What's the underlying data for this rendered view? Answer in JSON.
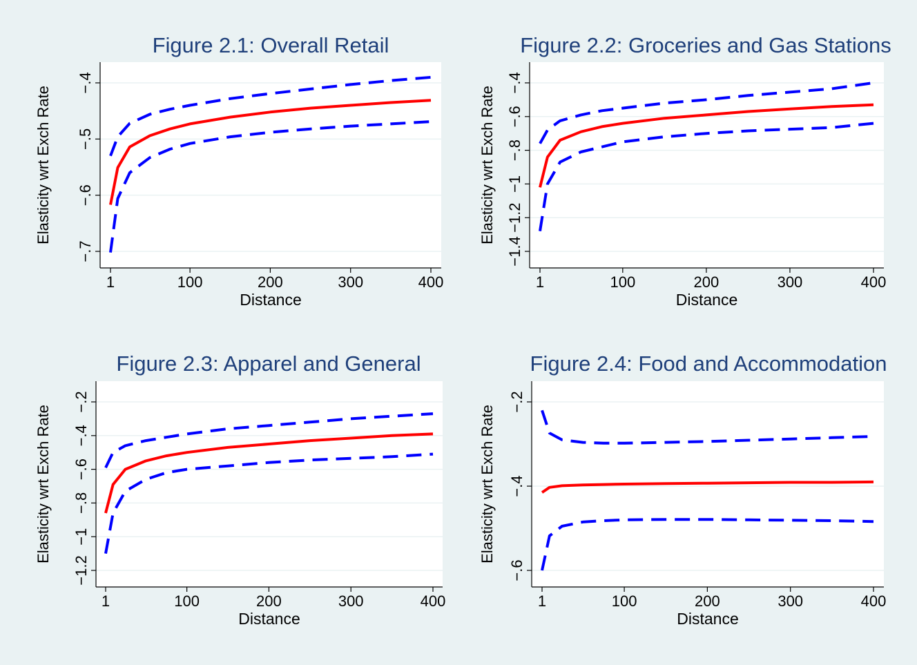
{
  "colors": {
    "background": "#eaf2f3",
    "plot_area": "#ffffff",
    "gridline": "#eaf2f3",
    "title": "#1e3f7a",
    "axis": "#000000",
    "estimate_line": "#ff0000",
    "ci_line": "#0000ff"
  },
  "chart_data": [
    {
      "type": "line",
      "title": "Figure 2.1:  Overall Retail",
      "xlabel": "Distance",
      "ylabel": "Elasticity wrt Exch Rate",
      "xlim": [
        1,
        400
      ],
      "ylim": [
        -0.7,
        -0.4
      ],
      "xticks": [
        1,
        100,
        200,
        300,
        400
      ],
      "xtick_labels": [
        "1",
        "100",
        "200",
        "300",
        "400"
      ],
      "yticks": [
        -0.7,
        -0.6,
        -0.5,
        -0.4
      ],
      "ytick_labels": [
        "−.7",
        "−.6",
        "−.5",
        "−.4"
      ],
      "grid": true,
      "x": [
        1,
        10,
        25,
        50,
        75,
        100,
        150,
        200,
        250,
        300,
        350,
        400
      ],
      "series": [
        {
          "style": "solid",
          "values": [
            -0.617,
            -0.551,
            -0.514,
            -0.494,
            -0.482,
            -0.473,
            -0.461,
            -0.452,
            -0.445,
            -0.44,
            -0.435,
            -0.431
          ]
        },
        {
          "style": "dashed",
          "values": [
            -0.53,
            -0.496,
            -0.472,
            -0.456,
            -0.447,
            -0.44,
            -0.428,
            -0.419,
            -0.411,
            -0.403,
            -0.396,
            -0.39
          ]
        },
        {
          "style": "dashed",
          "values": [
            -0.702,
            -0.606,
            -0.56,
            -0.533,
            -0.518,
            -0.508,
            -0.496,
            -0.488,
            -0.482,
            -0.477,
            -0.473,
            -0.469
          ]
        }
      ]
    },
    {
      "type": "line",
      "title": "Figure 2.2:  Groceries and Gas Stations",
      "xlabel": "Distance",
      "ylabel": "Elasticity wrt Exch Rate",
      "xlim": [
        1,
        400
      ],
      "ylim": [
        -1.4,
        -0.4
      ],
      "xticks": [
        1,
        100,
        200,
        300,
        400
      ],
      "xtick_labels": [
        "1",
        "100",
        "200",
        "300",
        "400"
      ],
      "yticks": [
        -1.4,
        -1.2,
        -1.0,
        -0.8,
        -0.6,
        -0.4
      ],
      "ytick_labels": [
        "−1.4",
        "−1.2",
        "−1",
        "−.8",
        "−.6",
        "−.4"
      ],
      "grid": true,
      "x": [
        1,
        10,
        25,
        50,
        75,
        100,
        150,
        200,
        250,
        300,
        350,
        400
      ],
      "series": [
        {
          "style": "solid",
          "values": [
            -1.02,
            -0.84,
            -0.74,
            -0.69,
            -0.66,
            -0.64,
            -0.61,
            -0.59,
            -0.57,
            -0.555,
            -0.54,
            -0.53
          ]
        },
        {
          "style": "dashed",
          "values": [
            -0.76,
            -0.68,
            -0.625,
            -0.59,
            -0.565,
            -0.55,
            -0.52,
            -0.5,
            -0.475,
            -0.455,
            -0.435,
            -0.4
          ]
        },
        {
          "style": "dashed",
          "values": [
            -1.28,
            -1.0,
            -0.87,
            -0.81,
            -0.78,
            -0.75,
            -0.72,
            -0.7,
            -0.685,
            -0.675,
            -0.665,
            -0.64
          ]
        }
      ]
    },
    {
      "type": "line",
      "title": "Figure 2.3:  Apparel and General",
      "xlabel": "Distance",
      "ylabel": "Elasticity wrt Exch Rate",
      "xlim": [
        1,
        400
      ],
      "ylim": [
        -1.2,
        -0.2
      ],
      "xticks": [
        1,
        100,
        200,
        300,
        400
      ],
      "xtick_labels": [
        "1",
        "100",
        "200",
        "300",
        "400"
      ],
      "yticks": [
        -1.2,
        -1.0,
        -0.8,
        -0.6,
        -0.4,
        -0.2
      ],
      "ytick_labels": [
        "−1.2",
        "−1",
        "−.8",
        "−.6",
        "−.4",
        "−.2"
      ],
      "grid": true,
      "x": [
        1,
        10,
        25,
        50,
        75,
        100,
        150,
        200,
        250,
        300,
        350,
        400
      ],
      "series": [
        {
          "style": "solid",
          "values": [
            -0.86,
            -0.69,
            -0.6,
            -0.55,
            -0.52,
            -0.5,
            -0.47,
            -0.45,
            -0.43,
            -0.415,
            -0.4,
            -0.39
          ]
        },
        {
          "style": "dashed",
          "values": [
            -0.59,
            -0.5,
            -0.46,
            -0.43,
            -0.41,
            -0.39,
            -0.36,
            -0.34,
            -0.32,
            -0.3,
            -0.285,
            -0.27
          ]
        },
        {
          "style": "dashed",
          "values": [
            -1.1,
            -0.86,
            -0.73,
            -0.66,
            -0.62,
            -0.6,
            -0.58,
            -0.56,
            -0.545,
            -0.535,
            -0.525,
            -0.51
          ]
        }
      ]
    },
    {
      "type": "line",
      "title": "Figure 2.4:  Food and Accommodation",
      "xlabel": "Distance",
      "ylabel": "Elasticity wrt Exch Rate",
      "xlim": [
        1,
        400
      ],
      "ylim": [
        -0.6,
        -0.2
      ],
      "xticks": [
        1,
        100,
        200,
        300,
        400
      ],
      "xtick_labels": [
        "1",
        "100",
        "200",
        "300",
        "400"
      ],
      "yticks": [
        -0.6,
        -0.4,
        -0.2
      ],
      "ytick_labels": [
        "−.6",
        "−.4",
        "−.2"
      ],
      "grid": true,
      "x": [
        1,
        10,
        25,
        50,
        75,
        100,
        150,
        200,
        250,
        300,
        350,
        400
      ],
      "series": [
        {
          "style": "solid",
          "values": [
            -0.415,
            -0.403,
            -0.399,
            -0.397,
            -0.396,
            -0.395,
            -0.394,
            -0.393,
            -0.392,
            -0.391,
            -0.391,
            -0.39
          ]
        },
        {
          "style": "dashed",
          "values": [
            -0.22,
            -0.274,
            -0.29,
            -0.296,
            -0.298,
            -0.298,
            -0.296,
            -0.294,
            -0.291,
            -0.288,
            -0.285,
            -0.282
          ]
        },
        {
          "style": "dashed",
          "values": [
            -0.6,
            -0.518,
            -0.495,
            -0.485,
            -0.482,
            -0.48,
            -0.479,
            -0.479,
            -0.48,
            -0.481,
            -0.482,
            -0.484
          ]
        }
      ]
    }
  ]
}
